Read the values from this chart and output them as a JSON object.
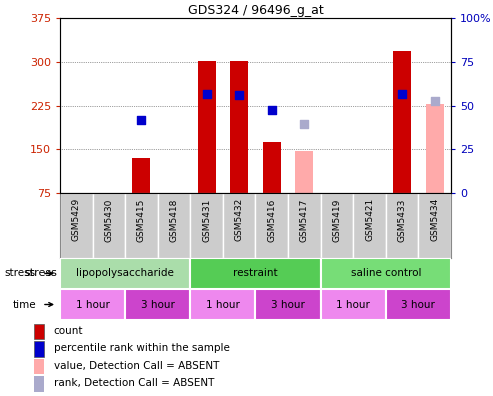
{
  "title": "GDS324 / 96496_g_at",
  "samples": [
    "GSM5429",
    "GSM5430",
    "GSM5415",
    "GSM5418",
    "GSM5431",
    "GSM5432",
    "GSM5416",
    "GSM5417",
    "GSM5419",
    "GSM5421",
    "GSM5433",
    "GSM5434"
  ],
  "bar_values": [
    null,
    null,
    135,
    null,
    302,
    302,
    163,
    null,
    null,
    null,
    318,
    null
  ],
  "bar_color": "#cc0000",
  "absent_bar_values": [
    null,
    null,
    null,
    null,
    null,
    null,
    null,
    147,
    null,
    null,
    null,
    228
  ],
  "absent_bar_color": "#ffaaaa",
  "blue_dot_values": [
    null,
    null,
    200,
    null,
    245,
    243,
    218,
    null,
    null,
    null,
    244,
    null
  ],
  "blue_dot_color": "#0000cc",
  "absent_dot_values": [
    null,
    null,
    null,
    null,
    null,
    null,
    null,
    193,
    null,
    null,
    null,
    232
  ],
  "absent_dot_color": "#aaaacc",
  "ylim_left": [
    75,
    375
  ],
  "ylim_right": [
    0,
    100
  ],
  "yticks_left": [
    75,
    150,
    225,
    300,
    375
  ],
  "yticks_right": [
    0,
    25,
    50,
    75,
    100
  ],
  "ytick_labels_left": [
    "75",
    "150",
    "225",
    "300",
    "375"
  ],
  "ytick_labels_right": [
    "0",
    "25",
    "50",
    "75",
    "100%"
  ],
  "left_axis_color": "#cc2200",
  "right_axis_color": "#0000bb",
  "stress_groups": [
    {
      "label": "lipopolysaccharide",
      "start": 0,
      "end": 4,
      "color": "#aaddaa"
    },
    {
      "label": "restraint",
      "start": 4,
      "end": 8,
      "color": "#55cc55"
    },
    {
      "label": "saline control",
      "start": 8,
      "end": 12,
      "color": "#77dd77"
    }
  ],
  "time_groups": [
    {
      "label": "1 hour",
      "start": 0,
      "end": 2,
      "color": "#ee88ee"
    },
    {
      "label": "3 hour",
      "start": 2,
      "end": 4,
      "color": "#cc44cc"
    },
    {
      "label": "1 hour",
      "start": 4,
      "end": 6,
      "color": "#ee88ee"
    },
    {
      "label": "3 hour",
      "start": 6,
      "end": 8,
      "color": "#cc44cc"
    },
    {
      "label": "1 hour",
      "start": 8,
      "end": 10,
      "color": "#ee88ee"
    },
    {
      "label": "3 hour",
      "start": 10,
      "end": 12,
      "color": "#cc44cc"
    }
  ],
  "legend_items": [
    {
      "label": "count",
      "color": "#cc0000"
    },
    {
      "label": "percentile rank within the sample",
      "color": "#0000cc"
    },
    {
      "label": "value, Detection Call = ABSENT",
      "color": "#ffaaaa"
    },
    {
      "label": "rank, Detection Call = ABSENT",
      "color": "#aaaacc"
    }
  ],
  "background_color": "#ffffff",
  "plot_bg_color": "#ffffff",
  "sample_bg_color": "#cccccc",
  "grid_color": "#444444",
  "bar_width": 0.55,
  "dot_size": 40
}
